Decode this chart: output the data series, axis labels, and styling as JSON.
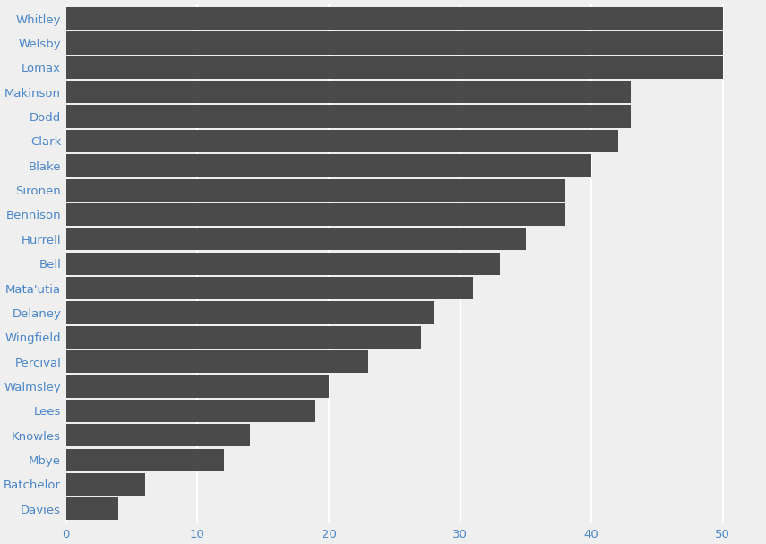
{
  "players": [
    "Whitley",
    "Welsby",
    "Lomax",
    "Makinson",
    "Dodd",
    "Clark",
    "Blake",
    "Sironen",
    "Bennison",
    "Hurrell",
    "Bell",
    "Mata'utia",
    "Delaney",
    "Wingfield",
    "Percival",
    "Walmsley",
    "Lees",
    "Knowles",
    "Mbye",
    "Batchelor",
    "Davies"
  ],
  "values": [
    50,
    50,
    50,
    43,
    43,
    42,
    40,
    38,
    38,
    35,
    33,
    31,
    28,
    27,
    23,
    20,
    19,
    14,
    12,
    6,
    4
  ],
  "bar_color": "#4a4a4a",
  "bg_color": "#efefef",
  "grid_color": "#ffffff",
  "xlabel_color": "#4a86c8",
  "ylabel_color": "#4a86c8",
  "xlim": [
    0,
    53
  ],
  "xticks": [
    0,
    10,
    20,
    30,
    40,
    50
  ],
  "figsize": [
    8.55,
    6.07
  ],
  "dpi": 100,
  "bar_height": 0.92,
  "fontsize": 9.5
}
